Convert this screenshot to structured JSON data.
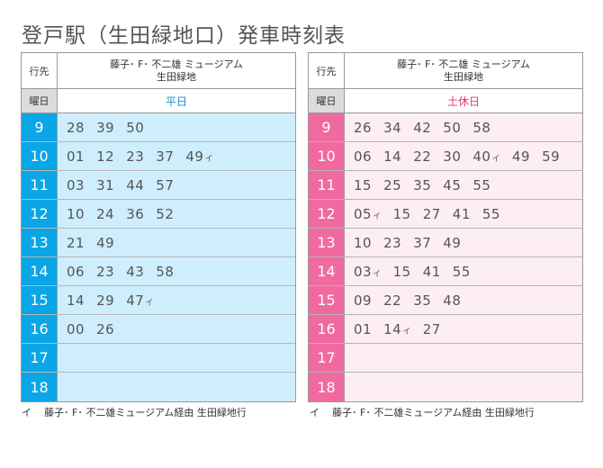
{
  "title": "登戸駅（生田緑地口）発車時刻表",
  "labels": {
    "destination": "行先",
    "day": "曜日"
  },
  "destination": {
    "line1": "藤子･ F･ 不二雄 ミュージアム",
    "line2": "生田緑地"
  },
  "weekday": {
    "day_label": "平日",
    "hours": [
      {
        "hour": "9",
        "minutes": [
          {
            "m": "28"
          },
          {
            "m": "39"
          },
          {
            "m": "50"
          }
        ]
      },
      {
        "hour": "10",
        "minutes": [
          {
            "m": "01"
          },
          {
            "m": "12"
          },
          {
            "m": "23"
          },
          {
            "m": "37"
          },
          {
            "m": "49",
            "mark": "イ"
          }
        ]
      },
      {
        "hour": "11",
        "minutes": [
          {
            "m": "03"
          },
          {
            "m": "31"
          },
          {
            "m": "44"
          },
          {
            "m": "57"
          }
        ]
      },
      {
        "hour": "12",
        "minutes": [
          {
            "m": "10"
          },
          {
            "m": "24"
          },
          {
            "m": "36"
          },
          {
            "m": "52"
          }
        ]
      },
      {
        "hour": "13",
        "minutes": [
          {
            "m": "21"
          },
          {
            "m": "49"
          }
        ]
      },
      {
        "hour": "14",
        "minutes": [
          {
            "m": "06"
          },
          {
            "m": "23"
          },
          {
            "m": "43"
          },
          {
            "m": "58"
          }
        ]
      },
      {
        "hour": "15",
        "minutes": [
          {
            "m": "14"
          },
          {
            "m": "29"
          },
          {
            "m": "47",
            "mark": "イ"
          }
        ]
      },
      {
        "hour": "16",
        "minutes": [
          {
            "m": "00"
          },
          {
            "m": "26"
          }
        ]
      },
      {
        "hour": "17",
        "minutes": []
      },
      {
        "hour": "18",
        "minutes": []
      }
    ]
  },
  "holiday": {
    "day_label": "土休日",
    "hours": [
      {
        "hour": "9",
        "minutes": [
          {
            "m": "26"
          },
          {
            "m": "34"
          },
          {
            "m": "42"
          },
          {
            "m": "50"
          },
          {
            "m": "58"
          }
        ]
      },
      {
        "hour": "10",
        "minutes": [
          {
            "m": "06"
          },
          {
            "m": "14"
          },
          {
            "m": "22"
          },
          {
            "m": "30"
          },
          {
            "m": "40",
            "mark": "イ"
          },
          {
            "m": "49"
          },
          {
            "m": "59"
          }
        ]
      },
      {
        "hour": "11",
        "minutes": [
          {
            "m": "15"
          },
          {
            "m": "25"
          },
          {
            "m": "35"
          },
          {
            "m": "45"
          },
          {
            "m": "55"
          }
        ]
      },
      {
        "hour": "12",
        "minutes": [
          {
            "m": "05",
            "mark": "イ"
          },
          {
            "m": "15"
          },
          {
            "m": "27"
          },
          {
            "m": "41"
          },
          {
            "m": "55"
          }
        ]
      },
      {
        "hour": "13",
        "minutes": [
          {
            "m": "10"
          },
          {
            "m": "23"
          },
          {
            "m": "37"
          },
          {
            "m": "49"
          }
        ]
      },
      {
        "hour": "14",
        "minutes": [
          {
            "m": "03",
            "mark": "イ"
          },
          {
            "m": "15"
          },
          {
            "m": "41"
          },
          {
            "m": "55"
          }
        ]
      },
      {
        "hour": "15",
        "minutes": [
          {
            "m": "09"
          },
          {
            "m": "22"
          },
          {
            "m": "35"
          },
          {
            "m": "48"
          }
        ]
      },
      {
        "hour": "16",
        "minutes": [
          {
            "m": "01"
          },
          {
            "m": "14",
            "mark": "イ"
          },
          {
            "m": "27"
          }
        ]
      },
      {
        "hour": "17",
        "minutes": []
      },
      {
        "hour": "18",
        "minutes": []
      }
    ]
  },
  "footnote": {
    "mark": "イ",
    "text": "藤子･ F･ 不二雄ミュージアム経由 生田緑地行"
  },
  "colors": {
    "weekday_hour_bg": "#0aa6e6",
    "weekday_row_bg": "#cfeefd",
    "weekday_label": "#1a8fd6",
    "holiday_hour_bg": "#f06aa0",
    "holiday_row_bg": "#fdeef4",
    "holiday_label": "#e0377a"
  }
}
